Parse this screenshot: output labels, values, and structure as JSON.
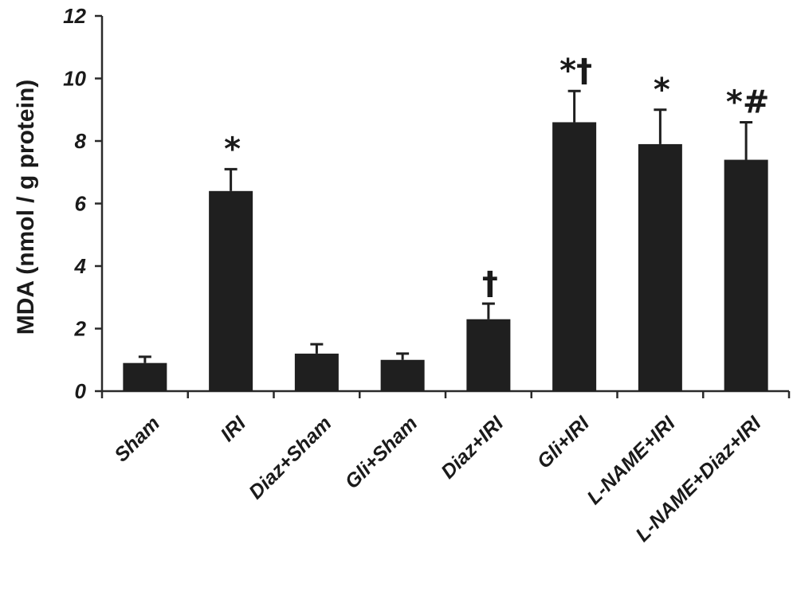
{
  "chart_data": {
    "type": "bar",
    "title": "",
    "xlabel": "",
    "ylabel": "MDA (nmol / g protein)",
    "ylim": [
      0,
      12
    ],
    "yticks": [
      "0",
      "2",
      "4",
      "6",
      "8",
      "10",
      "12"
    ],
    "grid": false,
    "categories": [
      "Sham",
      "IRI",
      "Diaz+Sham",
      "Gli+Sham",
      "Diaz+IRI",
      "Gli+IRI",
      "L-NAME+IRI",
      "L-NAME+Diaz+IRI"
    ],
    "values": [
      0.9,
      6.4,
      1.2,
      1.0,
      2.3,
      8.6,
      7.9,
      7.4
    ],
    "errors": [
      0.2,
      0.7,
      0.3,
      0.2,
      0.5,
      1.0,
      1.1,
      1.2
    ],
    "annotations": [
      "",
      "*",
      "",
      "",
      "†",
      "*†",
      "*",
      "*#"
    ],
    "bar_color": "#1f1f1f"
  }
}
